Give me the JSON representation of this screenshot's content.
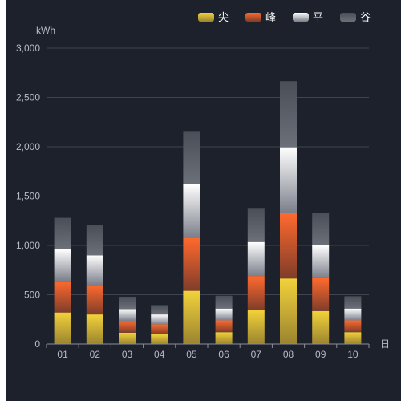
{
  "chart_data": {
    "type": "bar",
    "stacked": true,
    "categories": [
      "01",
      "02",
      "03",
      "04",
      "05",
      "06",
      "07",
      "08",
      "09",
      "10"
    ],
    "series": [
      {
        "name": "尖",
        "values": [
          320,
          300,
          115,
          100,
          540,
          120,
          345,
          665,
          335,
          120
        ],
        "color_top": "#f2d23a",
        "color_bottom": "#9b8430"
      },
      {
        "name": "峰",
        "values": [
          320,
          300,
          120,
          100,
          540,
          120,
          345,
          665,
          335,
          120
        ],
        "color_top": "#ff6a2e",
        "color_bottom": "#7f3d2a"
      },
      {
        "name": "平",
        "values": [
          320,
          300,
          120,
          100,
          540,
          120,
          345,
          665,
          330,
          120
        ],
        "color_top": "#ffffff",
        "color_bottom": "#7b7f8a"
      },
      {
        "name": "谷",
        "values": [
          320,
          305,
          125,
          95,
          540,
          130,
          345,
          670,
          330,
          125
        ],
        "color_top": "#4a4e57",
        "color_bottom": "#6b7079"
      }
    ],
    "ylabel": "kWh",
    "xlabel": "日",
    "ylim": [
      0,
      3000
    ],
    "yticks": [
      "0",
      "500",
      "1,000",
      "1,500",
      "2,000",
      "2,500",
      "3,000"
    ],
    "ytick_values": [
      0,
      500,
      1000,
      1500,
      2000,
      2500,
      3000
    ],
    "grid": true,
    "legend_position": "top-right"
  }
}
